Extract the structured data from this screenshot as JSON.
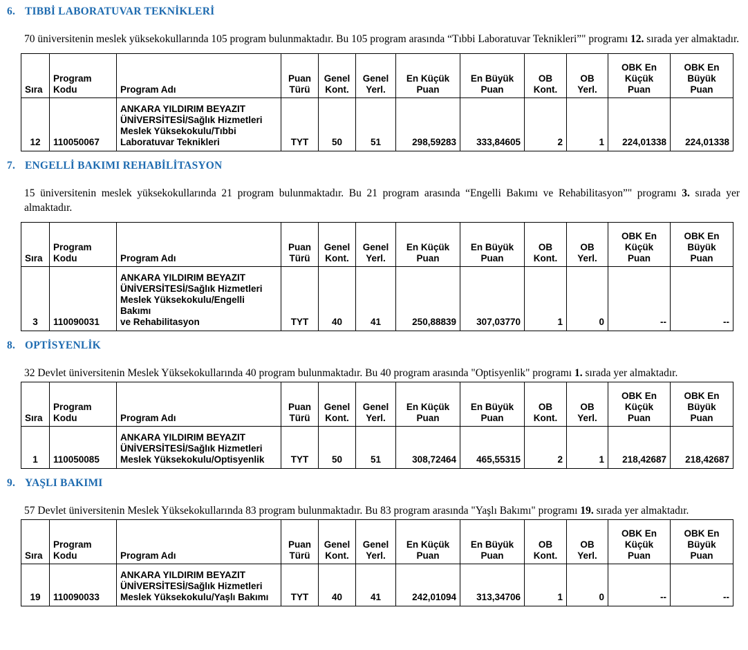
{
  "page": {
    "heading_color": "#1E6BB0",
    "text_color": "#000000",
    "table_border_color": "#000000"
  },
  "table": {
    "headers": [
      "Sıra",
      "Program\nKodu",
      "Program Adı",
      "Puan\nTürü",
      "Genel\nKont.",
      "Genel\nYerl.",
      "En Küçük\nPuan",
      "En Büyük\nPuan",
      "OB\nKont.",
      "OB\nYerl.",
      "OBK En\nKüçük\nPuan",
      "OBK En\nBüyük\nPuan"
    ]
  },
  "sections": [
    {
      "number": "6.",
      "title": "TIBBİ LABORATUVAR TEKNİKLERİ",
      "paragraph": [
        {
          "text": "70 üniversitenin meslek yüksekokullarında 105 program bulunmaktadır. Bu 105 program arasında “Tıbbi Laboratuvar Teknikleri”\" programı ",
          "bold": false
        },
        {
          "text": "12.",
          "bold": true
        },
        {
          "text": " sırada yer almaktadır.",
          "bold": false
        }
      ],
      "row": [
        "12",
        "110050067",
        "ANKARA YILDIRIM BEYAZIT\nÜNİVERSİTESİ/Sağlık Hizmetleri\nMeslek Yüksekokulu/Tıbbi\nLaboratuvar Teknikleri",
        "TYT",
        "50",
        "51",
        "298,59283",
        "333,84605",
        "2",
        "1",
        "224,01338",
        "224,01338"
      ]
    },
    {
      "number": "7.",
      "title": "ENGELLİ BAKIMI REHABİLİTASYON",
      "paragraph": [
        {
          "text": "15 üniversitenin meslek yüksekokullarında 21 program bulunmaktadır. Bu 21  program arasında “Engelli Bakımı ve Rehabilitasyon”\" programı ",
          "bold": false
        },
        {
          "text": "3.",
          "bold": true
        },
        {
          "text": " sırada yer almaktadır.",
          "bold": false
        }
      ],
      "row": [
        "3",
        "110090031",
        "ANKARA YILDIRIM BEYAZIT\nÜNİVERSİTESİ/Sağlık Hizmetleri\nMeslek Yüksekokulu/Engelli Bakımı\nve Rehabilitasyon",
        "TYT",
        "40",
        "41",
        "250,88839",
        "307,03770",
        "1",
        "0",
        "--",
        "--"
      ]
    },
    {
      "number": "8.",
      "title": "OPTİSYENLİK",
      "paragraph": [
        {
          "text": "32 Devlet üniversitenin Meslek Yüksekokullarında 40 program bulunmaktadır. Bu 40 program arasında \"Optisyenlik\" programı ",
          "bold": false
        },
        {
          "text": "1.",
          "bold": true
        },
        {
          "text": " sırada yer almaktadır.",
          "bold": false
        }
      ],
      "row": [
        "1",
        "110050085",
        "ANKARA YILDIRIM BEYAZIT\nÜNİVERSİTESİ/Sağlık Hizmetleri\nMeslek Yüksekokulu/Optisyenlik",
        "TYT",
        "50",
        "51",
        "308,72464",
        "465,55315",
        "2",
        "1",
        "218,42687",
        "218,42687"
      ]
    },
    {
      "number": "9.",
      "title": "YAŞLI BAKIMI",
      "paragraph": [
        {
          "text": "57 Devlet üniversitenin Meslek Yüksekokullarında 83 program bulunmaktadır. Bu 83 program arasında \"Yaşlı Bakımı\" programı ",
          "bold": false
        },
        {
          "text": "19.",
          "bold": true
        },
        {
          "text": " sırada yer almaktadır.",
          "bold": false
        }
      ],
      "row": [
        "19",
        "110090033",
        "ANKARA YILDIRIM BEYAZIT\nÜNİVERSİTESİ/Sağlık Hizmetleri\nMeslek Yüksekokulu/Yaşlı Bakımı",
        "TYT",
        "40",
        "41",
        "242,01094",
        "313,34706",
        "1",
        "0",
        "--",
        "--"
      ]
    }
  ]
}
